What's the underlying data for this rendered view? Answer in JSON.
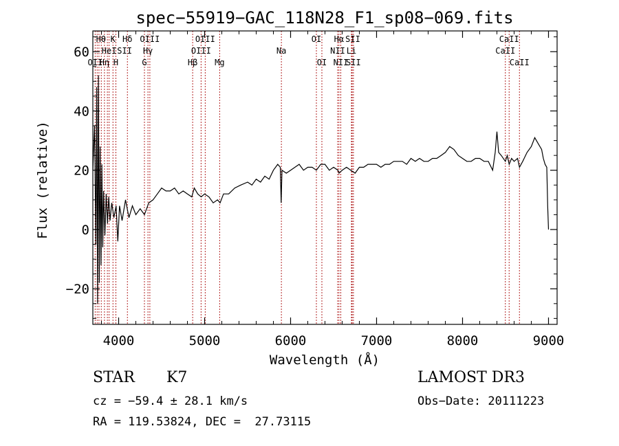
{
  "title": "spec−55919−GAC_118N28_F1_sp08−069.fits",
  "chart_data": {
    "type": "line",
    "xlabel": "Wavelength (Å)",
    "ylabel": "Flux (relative)",
    "xlim": [
      3700,
      9100
    ],
    "ylim": [
      -32,
      67
    ],
    "xticks": [
      4000,
      5000,
      6000,
      7000,
      8000,
      9000
    ],
    "yticks": [
      -20,
      0,
      20,
      40,
      60
    ],
    "series": [
      {
        "points": [
          [
            3700,
            20
          ],
          [
            3720,
            35
          ],
          [
            3735,
            -5
          ],
          [
            3745,
            48
          ],
          [
            3755,
            -25
          ],
          [
            3765,
            52
          ],
          [
            3775,
            -18
          ],
          [
            3785,
            28
          ],
          [
            3795,
            -12
          ],
          [
            3805,
            22
          ],
          [
            3815,
            -6
          ],
          [
            3825,
            13
          ],
          [
            3840,
            -2
          ],
          [
            3855,
            12
          ],
          [
            3870,
            2
          ],
          [
            3885,
            11
          ],
          [
            3900,
            3
          ],
          [
            3920,
            9
          ],
          [
            3945,
            4
          ],
          [
            3970,
            8
          ],
          [
            3990,
            -4
          ],
          [
            4010,
            8
          ],
          [
            4040,
            3
          ],
          [
            4080,
            10
          ],
          [
            4120,
            4
          ],
          [
            4160,
            8
          ],
          [
            4200,
            5
          ],
          [
            4250,
            7
          ],
          [
            4300,
            5
          ],
          [
            4350,
            9
          ],
          [
            4400,
            10
          ],
          [
            4450,
            12
          ],
          [
            4500,
            14
          ],
          [
            4550,
            13
          ],
          [
            4600,
            13
          ],
          [
            4650,
            14
          ],
          [
            4700,
            12
          ],
          [
            4750,
            13
          ],
          [
            4800,
            12
          ],
          [
            4850,
            11
          ],
          [
            4880,
            14
          ],
          [
            4920,
            12
          ],
          [
            4960,
            11
          ],
          [
            5000,
            12
          ],
          [
            5050,
            11
          ],
          [
            5100,
            9
          ],
          [
            5150,
            10
          ],
          [
            5180,
            9
          ],
          [
            5220,
            12
          ],
          [
            5280,
            12
          ],
          [
            5350,
            14
          ],
          [
            5420,
            15
          ],
          [
            5500,
            16
          ],
          [
            5550,
            15
          ],
          [
            5600,
            17
          ],
          [
            5650,
            16
          ],
          [
            5700,
            18
          ],
          [
            5750,
            17
          ],
          [
            5800,
            20
          ],
          [
            5850,
            22
          ],
          [
            5880,
            21
          ],
          [
            5890,
            9
          ],
          [
            5900,
            20
          ],
          [
            5950,
            19
          ],
          [
            6000,
            20
          ],
          [
            6050,
            21
          ],
          [
            6100,
            22
          ],
          [
            6150,
            20
          ],
          [
            6200,
            21
          ],
          [
            6250,
            21
          ],
          [
            6300,
            20
          ],
          [
            6350,
            22
          ],
          [
            6400,
            22
          ],
          [
            6450,
            20
          ],
          [
            6500,
            21
          ],
          [
            6550,
            20
          ],
          [
            6563,
            19
          ],
          [
            6600,
            20
          ],
          [
            6650,
            21
          ],
          [
            6700,
            20
          ],
          [
            6750,
            19
          ],
          [
            6800,
            21
          ],
          [
            6850,
            21
          ],
          [
            6900,
            22
          ],
          [
            6950,
            22
          ],
          [
            7000,
            22
          ],
          [
            7050,
            21
          ],
          [
            7100,
            22
          ],
          [
            7150,
            22
          ],
          [
            7200,
            23
          ],
          [
            7250,
            23
          ],
          [
            7300,
            23
          ],
          [
            7350,
            22
          ],
          [
            7400,
            24
          ],
          [
            7450,
            23
          ],
          [
            7500,
            24
          ],
          [
            7550,
            23
          ],
          [
            7600,
            23
          ],
          [
            7650,
            24
          ],
          [
            7700,
            24
          ],
          [
            7750,
            25
          ],
          [
            7800,
            26
          ],
          [
            7850,
            28
          ],
          [
            7900,
            27
          ],
          [
            7950,
            25
          ],
          [
            8000,
            24
          ],
          [
            8050,
            23
          ],
          [
            8100,
            23
          ],
          [
            8150,
            24
          ],
          [
            8200,
            24
          ],
          [
            8250,
            23
          ],
          [
            8300,
            23
          ],
          [
            8350,
            20
          ],
          [
            8380,
            26
          ],
          [
            8400,
            33
          ],
          [
            8420,
            26
          ],
          [
            8450,
            25
          ],
          [
            8498,
            23
          ],
          [
            8520,
            25
          ],
          [
            8542,
            22
          ],
          [
            8570,
            24
          ],
          [
            8600,
            23
          ],
          [
            8640,
            24
          ],
          [
            8662,
            21
          ],
          [
            8700,
            23
          ],
          [
            8750,
            26
          ],
          [
            8800,
            28
          ],
          [
            8840,
            31
          ],
          [
            8880,
            29
          ],
          [
            8920,
            27
          ],
          [
            8940,
            24
          ],
          [
            8960,
            22
          ],
          [
            8980,
            21
          ],
          [
            8990,
            8
          ],
          [
            9000,
            0
          ]
        ]
      }
    ],
    "lines_x": [
      3727,
      3750,
      3771,
      3798,
      3835,
      3869,
      3889,
      3934,
      3968,
      4102,
      4300,
      4341,
      4363,
      4861,
      4959,
      5007,
      5175,
      5893,
      6300,
      6364,
      6548,
      6563,
      6584,
      6708,
      6716,
      6731,
      8498,
      8542,
      8662
    ],
    "line_labels": [
      {
        "text": "Hθ",
        "x": 3795,
        "row": 1
      },
      {
        "text": "K",
        "x": 3934,
        "row": 1
      },
      {
        "text": "Hδ",
        "x": 4102,
        "row": 1
      },
      {
        "text": "OIII",
        "x": 4363,
        "row": 1
      },
      {
        "text": "OIII",
        "x": 5007,
        "row": 1
      },
      {
        "text": "OI",
        "x": 6300,
        "row": 1
      },
      {
        "text": "Hα",
        "x": 6563,
        "row": 1
      },
      {
        "text": "SII",
        "x": 6724,
        "row": 1
      },
      {
        "text": "CaII",
        "x": 8542,
        "row": 1
      },
      {
        "text": "HeI",
        "x": 3889,
        "row": 2
      },
      {
        "text": "SII",
        "x": 4069,
        "row": 2
      },
      {
        "text": "Hγ",
        "x": 4341,
        "row": 2
      },
      {
        "text": "OIII",
        "x": 4959,
        "row": 2
      },
      {
        "text": "Na",
        "x": 5893,
        "row": 2
      },
      {
        "text": "NII",
        "x": 6548,
        "row": 2
      },
      {
        "text": "Li",
        "x": 6708,
        "row": 2
      },
      {
        "text": "CaII",
        "x": 8498,
        "row": 2
      },
      {
        "text": "OII",
        "x": 3727,
        "row": 3
      },
      {
        "text": "Hη",
        "x": 3835,
        "row": 3
      },
      {
        "text": "H",
        "x": 3968,
        "row": 3
      },
      {
        "text": "G",
        "x": 4300,
        "row": 3
      },
      {
        "text": "Hβ",
        "x": 4861,
        "row": 3
      },
      {
        "text": "Mg",
        "x": 5175,
        "row": 3
      },
      {
        "text": "OI",
        "x": 6364,
        "row": 3
      },
      {
        "text": "NII",
        "x": 6584,
        "row": 3
      },
      {
        "text": "SII",
        "x": 6731,
        "row": 3
      },
      {
        "text": "CaII",
        "x": 8662,
        "row": 3
      }
    ]
  },
  "info": {
    "object_class": "STAR",
    "subclass": "K7",
    "survey": "LAMOST DR3",
    "cz": "cz = −59.4 ± 28.1 km/s",
    "obs_date": "Obs−Date: 20111223",
    "radec": "RA = 119.53824, DEC =  27.73115"
  }
}
